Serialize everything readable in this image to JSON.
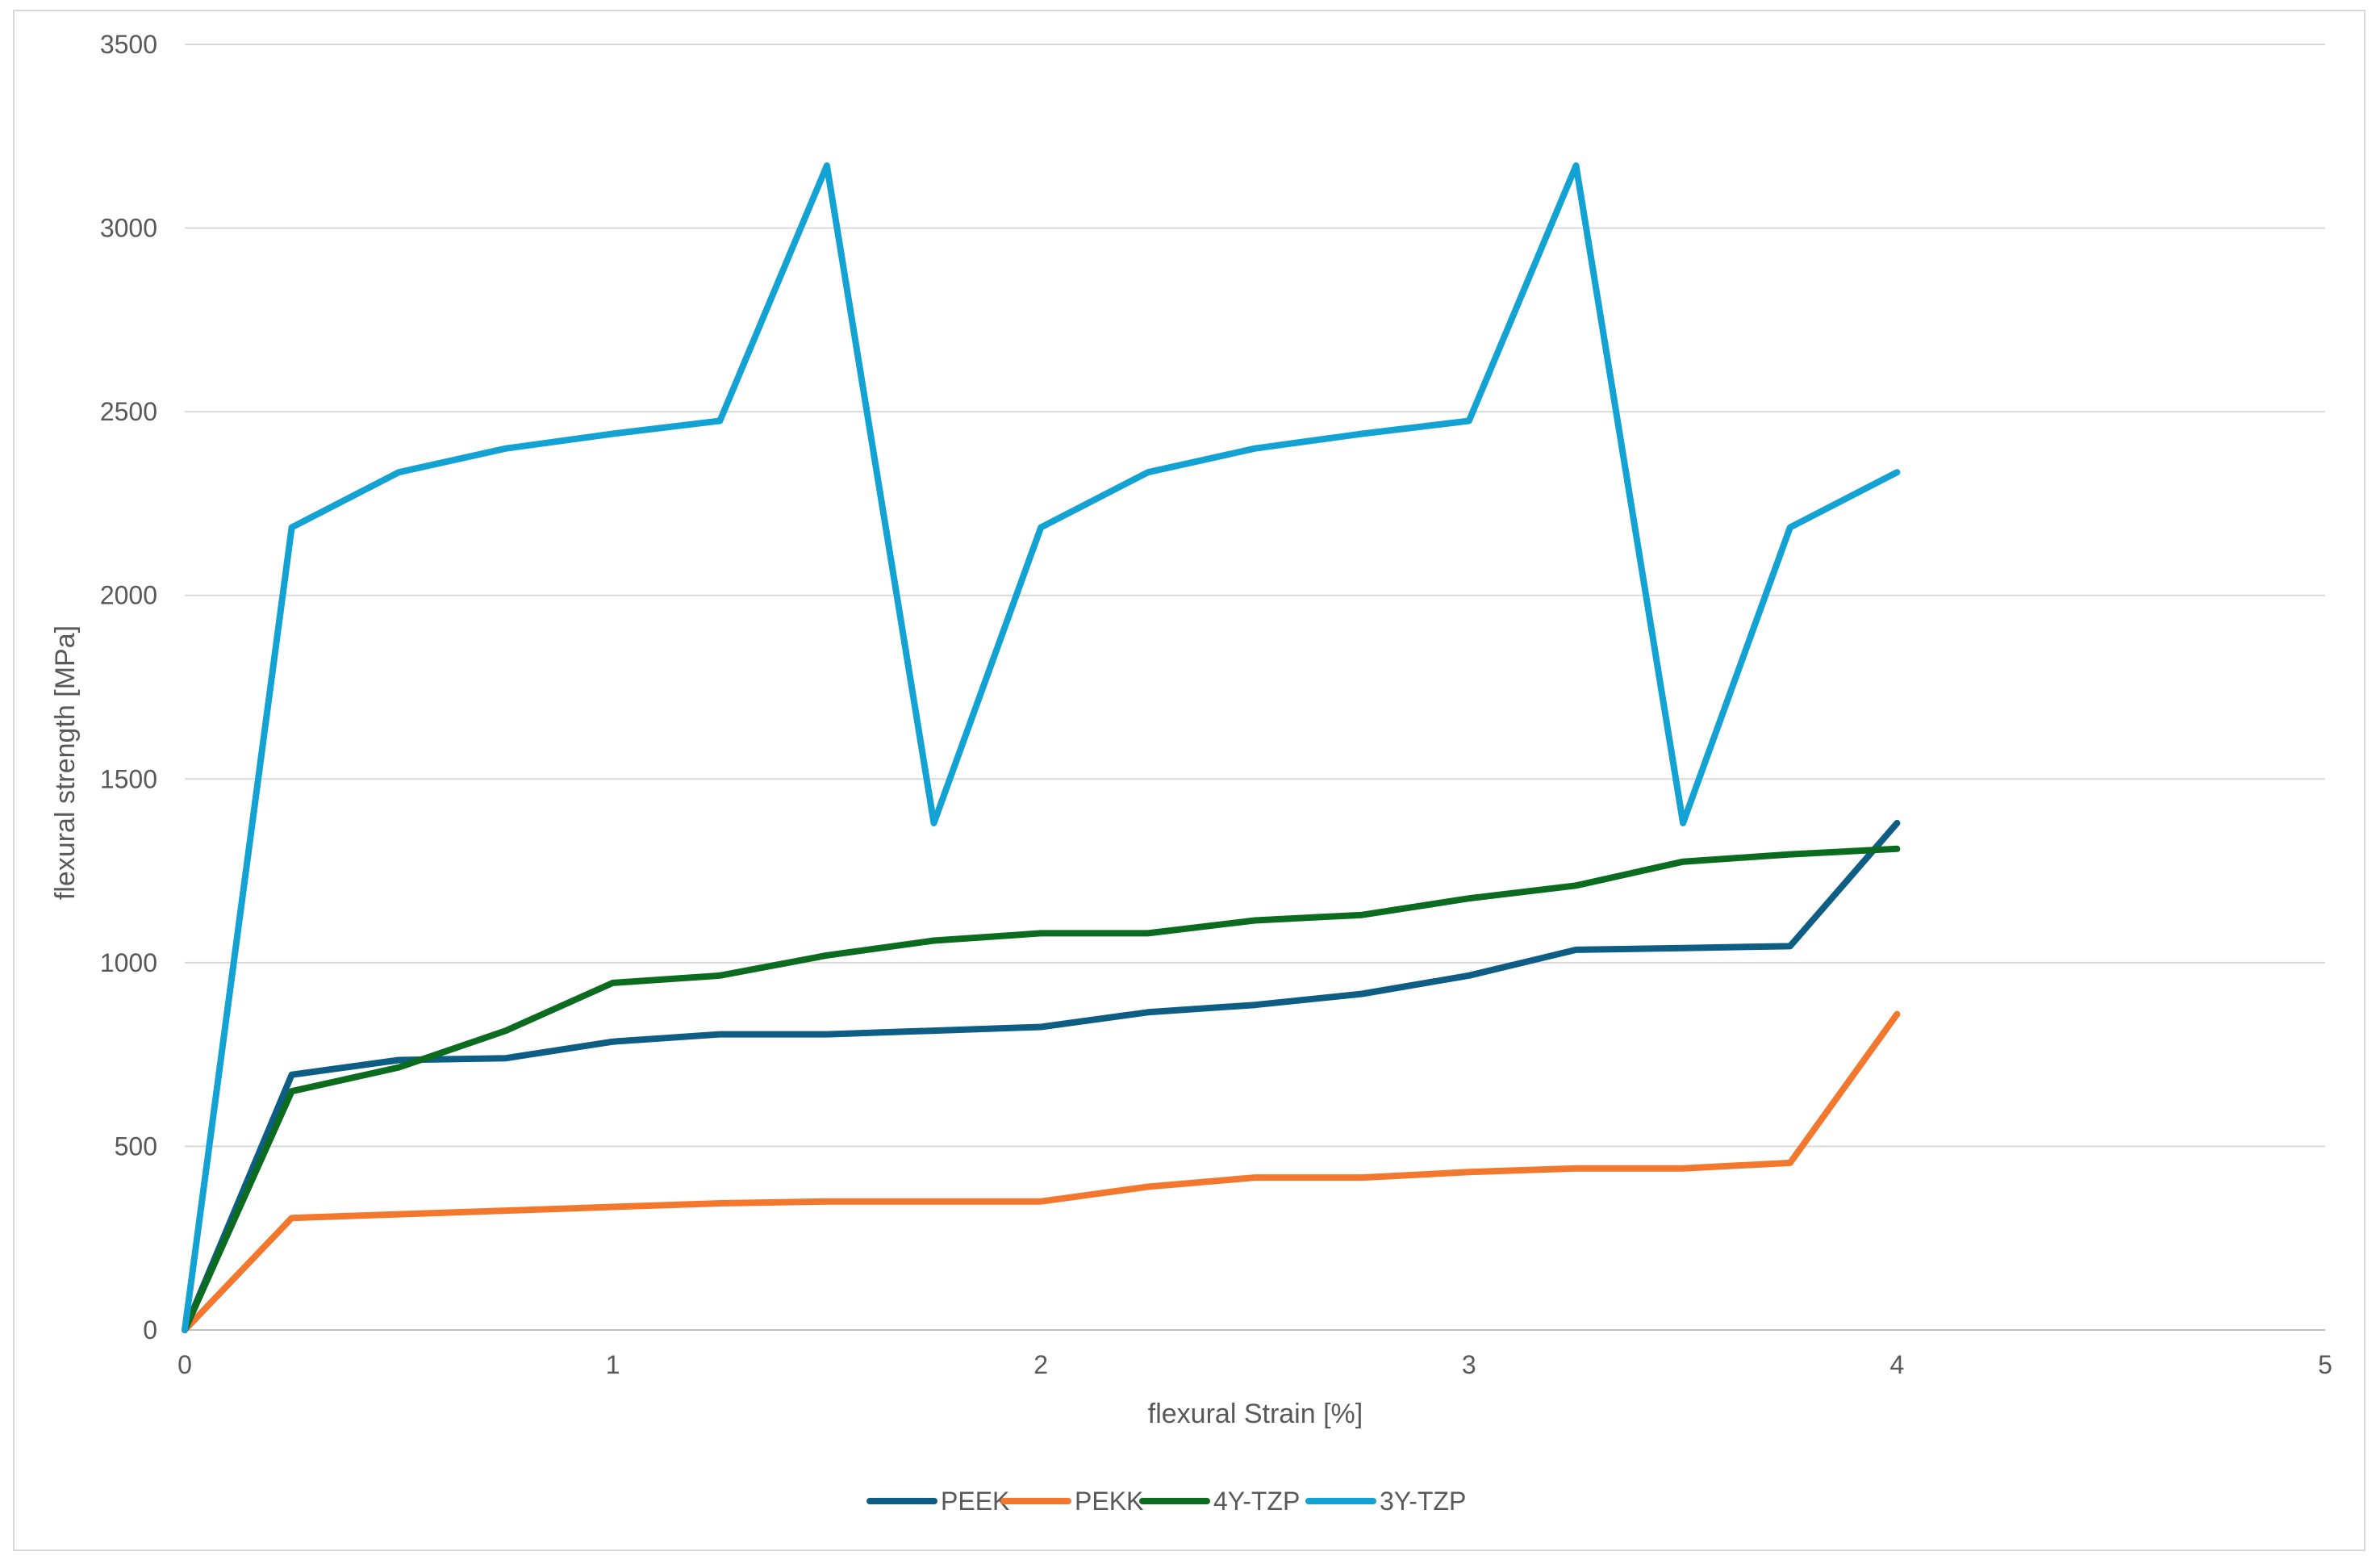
{
  "chart_data": {
    "type": "line",
    "title": "",
    "xlabel": "flexural  Strain [%]",
    "ylabel": "flexural strength [MPa]",
    "xlim": [
      0,
      5
    ],
    "ylim": [
      0,
      3500
    ],
    "xticks": [
      0,
      1,
      2,
      3,
      4,
      5
    ],
    "yticks": [
      0,
      500,
      1000,
      1500,
      2000,
      2500,
      3000,
      3500
    ],
    "grid": "horizontal",
    "legend_position": "bottom",
    "x": [
      0,
      0.25,
      0.5,
      0.75,
      1,
      1.25,
      1.5,
      1.75,
      2,
      2.25,
      2.5,
      2.75,
      3,
      3.25,
      3.5,
      3.75,
      4
    ],
    "series": [
      {
        "name": "PEEK",
        "color": "#0e5d85",
        "values": [
          0,
          695,
          735,
          740,
          785,
          805,
          805,
          815,
          825,
          865,
          885,
          915,
          965,
          1035,
          1040,
          1045,
          1380
        ]
      },
      {
        "name": "PEKK",
        "color": "#f4772e",
        "values": [
          0,
          305,
          315,
          325,
          335,
          345,
          350,
          350,
          350,
          390,
          415,
          415,
          430,
          440,
          440,
          455,
          860
        ]
      },
      {
        "name": "4Y-TZP",
        "color": "#0b6b1f",
        "values": [
          0,
          650,
          715,
          815,
          945,
          965,
          1020,
          1060,
          1080,
          1080,
          1115,
          1130,
          1175,
          1210,
          1275,
          1295,
          1310
        ]
      },
      {
        "name": "3Y-TZP",
        "color": "#12a3d4",
        "values": [
          0,
          2185,
          2335,
          2400,
          2440,
          2475,
          3170,
          1380,
          2185,
          2335,
          2400,
          2440,
          2475,
          3170,
          1380,
          2185,
          2335
        ]
      }
    ]
  },
  "colors": {
    "grid": "#d9d9d9",
    "axis": "#bfbfbf",
    "text": "#595959"
  }
}
